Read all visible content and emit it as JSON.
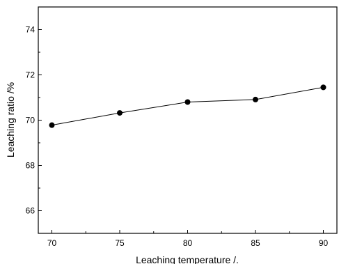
{
  "chart_data": {
    "type": "line",
    "x": [
      70,
      75,
      80,
      85,
      90
    ],
    "series": [
      {
        "values": [
          69.78,
          70.32,
          70.8,
          70.91,
          71.45
        ]
      }
    ],
    "xlabel": "Leaching temperature /.",
    "ylabel": "Leaching ratio /%",
    "xlim": [
      69,
      91
    ],
    "ylim": [
      65,
      75
    ],
    "xticks": [
      70,
      75,
      80,
      85,
      90
    ],
    "yticks": [
      66,
      68,
      70,
      72,
      74
    ],
    "grid": false,
    "line_color": "#000000",
    "marker_color": "#000000"
  }
}
